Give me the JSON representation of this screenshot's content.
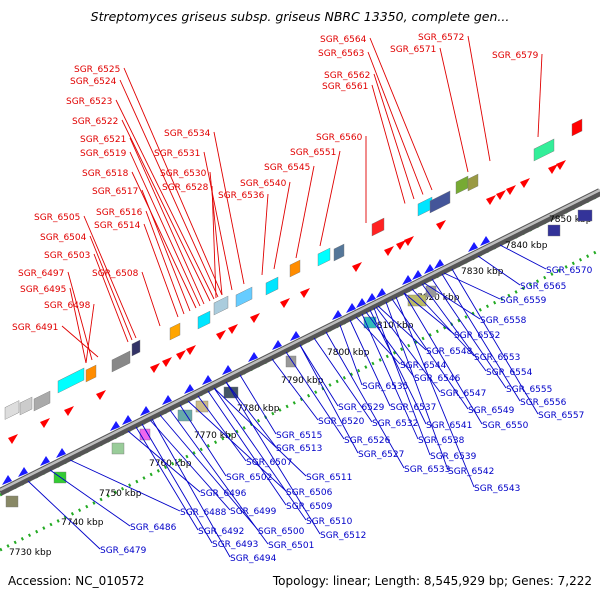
{
  "title": "Streptomyces griseus subsp. griseus NBRC 13350, complete gen...",
  "footer": {
    "accession": "Accession: NC_010572",
    "summary": "Topology: linear; Length: 8,545,929 bp; Genes: 7,222"
  },
  "colors": {
    "forward_label": "#e00000",
    "reverse_label": "#0000c8",
    "forward_gene": "#ff0000",
    "reverse_gene": "#1a1aff",
    "backbone": "#888888",
    "dotted_track": "#22aa22"
  },
  "kbp_ticks": [
    "7730 kbp",
    "7740 kbp",
    "7750 kbp",
    "7760 kbp",
    "7770 kbp",
    "7780 kbp",
    "7790 kbp",
    "7800 kbp",
    "7810 kbp",
    "7820 kbp",
    "7830 kbp",
    "7840 kbp",
    "7850 kbp"
  ],
  "forward_genes": [
    "SGR_6491",
    "SGR_6498",
    "SGR_6495",
    "SGR_6497",
    "SGR_6508",
    "SGR_6503",
    "SGR_6504",
    "SGR_6505",
    "SGR_6514",
    "SGR_6516",
    "SGR_6517",
    "SGR_6518",
    "SGR_6519",
    "SGR_6521",
    "SGR_6522",
    "SGR_6523",
    "SGR_6524",
    "SGR_6525",
    "SGR_6528",
    "SGR_6530",
    "SGR_6531",
    "SGR_6534",
    "SGR_6536",
    "SGR_6540",
    "SGR_6545",
    "SGR_6551",
    "SGR_6560",
    "SGR_6561",
    "SGR_6562",
    "SGR_6563",
    "SGR_6564",
    "SGR_6571",
    "SGR_6572",
    "SGR_6579"
  ],
  "reverse_genes": [
    "SGR_6479",
    "SGR_6486",
    "SGR_6488",
    "SGR_6492",
    "SGR_6493",
    "SGR_6494",
    "SGR_6496",
    "SGR_6499",
    "SGR_6500",
    "SGR_6501",
    "SGR_6502",
    "SGR_6506",
    "SGR_6507",
    "SGR_6509",
    "SGR_6510",
    "SGR_6511",
    "SGR_6512",
    "SGR_6513",
    "SGR_6515",
    "SGR_6520",
    "SGR_6526",
    "SGR_6527",
    "SGR_6529",
    "SGR_6532",
    "SGR_6533",
    "SGR_6535",
    "SGR_6537",
    "SGR_6538",
    "SGR_6539",
    "SGR_6541",
    "SGR_6542",
    "SGR_6543",
    "SGR_6544",
    "SGR_6546",
    "SGR_6547",
    "SGR_6548",
    "SGR_6549",
    "SGR_6550",
    "SGR_6552",
    "SGR_6553",
    "SGR_6554",
    "SGR_6555",
    "SGR_6556",
    "SGR_6557",
    "SGR_6558",
    "SGR_6559",
    "SGR_6565",
    "SGR_6570"
  ]
}
